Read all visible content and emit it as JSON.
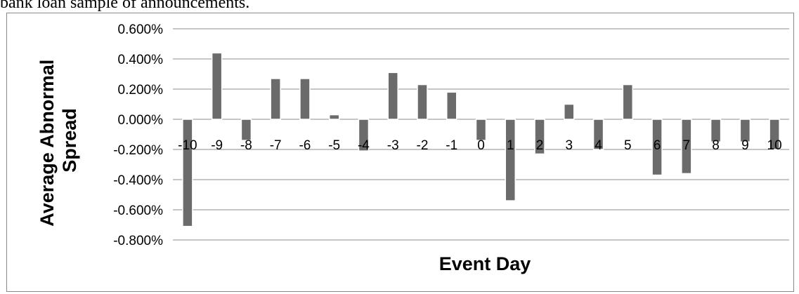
{
  "caption": "bank loan sample of announcements.",
  "chart_data": {
    "type": "bar",
    "xlabel": "Event Day",
    "ylabel_lines": [
      "Average Abnormal",
      "Spread"
    ],
    "ylim": [
      -0.8,
      0.6
    ],
    "yticks": [
      0.6,
      0.4,
      0.2,
      0.0,
      -0.2,
      -0.4,
      -0.6,
      -0.8
    ],
    "ytick_labels": [
      "0.600%",
      "0.400%",
      "0.200%",
      "0.000%",
      "-0.200%",
      "-0.400%",
      "-0.600%",
      "-0.800%"
    ],
    "y_unit": "%",
    "grid": true,
    "bar_color": "#6b6b6b",
    "categories": [
      "-10",
      "-9",
      "-8",
      "-7",
      "-6",
      "-5",
      "-4",
      "-3",
      "-2",
      "-1",
      "0",
      "1",
      "2",
      "3",
      "4",
      "5",
      "6",
      "7",
      "8",
      "9",
      "10"
    ],
    "values": [
      -0.71,
      0.44,
      -0.14,
      0.27,
      0.27,
      0.03,
      -0.21,
      0.31,
      0.23,
      0.18,
      -0.14,
      -0.54,
      -0.23,
      0.1,
      -0.2,
      0.23,
      -0.37,
      -0.36,
      -0.15,
      -0.15,
      -0.2
    ]
  }
}
